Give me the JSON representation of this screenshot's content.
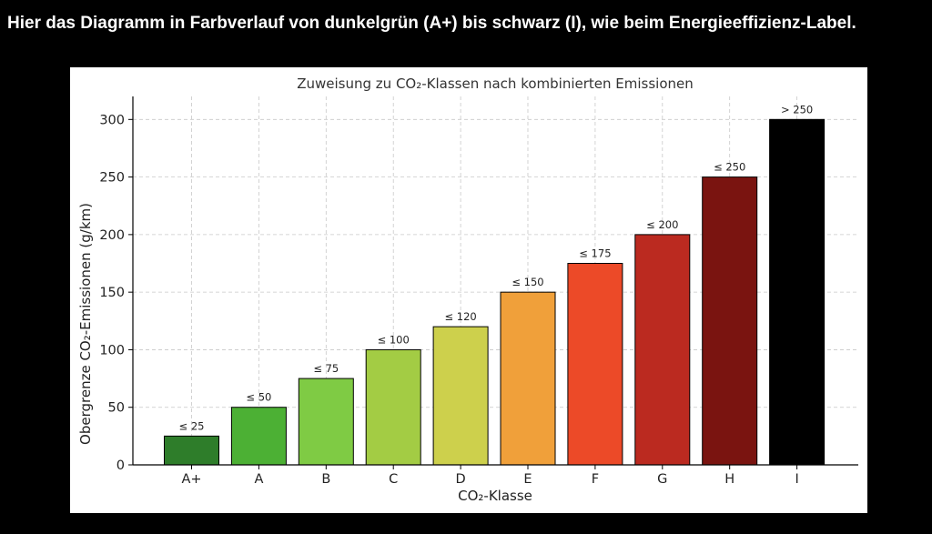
{
  "heading": "Hier das Diagramm in Farbverlauf von dunkelgrün (A+) bis schwarz (I), wie beim Energieeffizienz-Label.",
  "colors": {
    "page_background": "#000000",
    "heading_text": "#ffffff",
    "chart_background": "#ffffff"
  },
  "chart_data": {
    "type": "bar",
    "title": "Zuweisung zu CO₂-Klassen nach kombinierten Emissionen",
    "xlabel": "CO₂-Klasse",
    "ylabel": "Obergrenze CO₂-Emissionen (g/km)",
    "categories": [
      "A+",
      "A",
      "B",
      "C",
      "D",
      "E",
      "F",
      "G",
      "H",
      "I"
    ],
    "values": [
      25,
      50,
      75,
      100,
      120,
      150,
      175,
      200,
      250,
      300
    ],
    "data_labels": [
      "≤ 25",
      "≤ 50",
      "≤ 75",
      "≤ 100",
      "≤ 120",
      "≤ 150",
      "≤ 175",
      "≤ 200",
      "≤ 250",
      "> 250"
    ],
    "bar_colors": [
      "#2e7d2a",
      "#4cb034",
      "#7fcb44",
      "#a3cc44",
      "#cdd04c",
      "#f0a03a",
      "#ec4a28",
      "#bb2a20",
      "#7a1410",
      "#000000"
    ],
    "yticks": [
      0,
      50,
      100,
      150,
      200,
      250,
      300
    ],
    "ylim": [
      0,
      320
    ],
    "grid": true,
    "legend": "none"
  }
}
